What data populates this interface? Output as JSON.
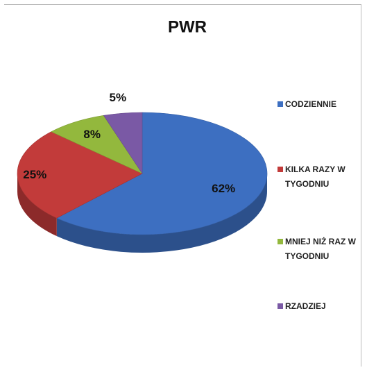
{
  "chart_data": {
    "type": "pie",
    "title": "PWR",
    "categories": [
      "CODZIENNIE",
      "KILKA RAZY W TYGODNIU",
      "MNIEJ NIŻ RAZ W TYGODNIU",
      "RZADZIEJ"
    ],
    "values": [
      62,
      25,
      8,
      5
    ],
    "value_labels": [
      "62%",
      "25%",
      "8%",
      "5%"
    ],
    "colors": [
      "#3d6fc1",
      "#c23b3a",
      "#93b83d",
      "#7a59a5"
    ],
    "legend": "right"
  }
}
